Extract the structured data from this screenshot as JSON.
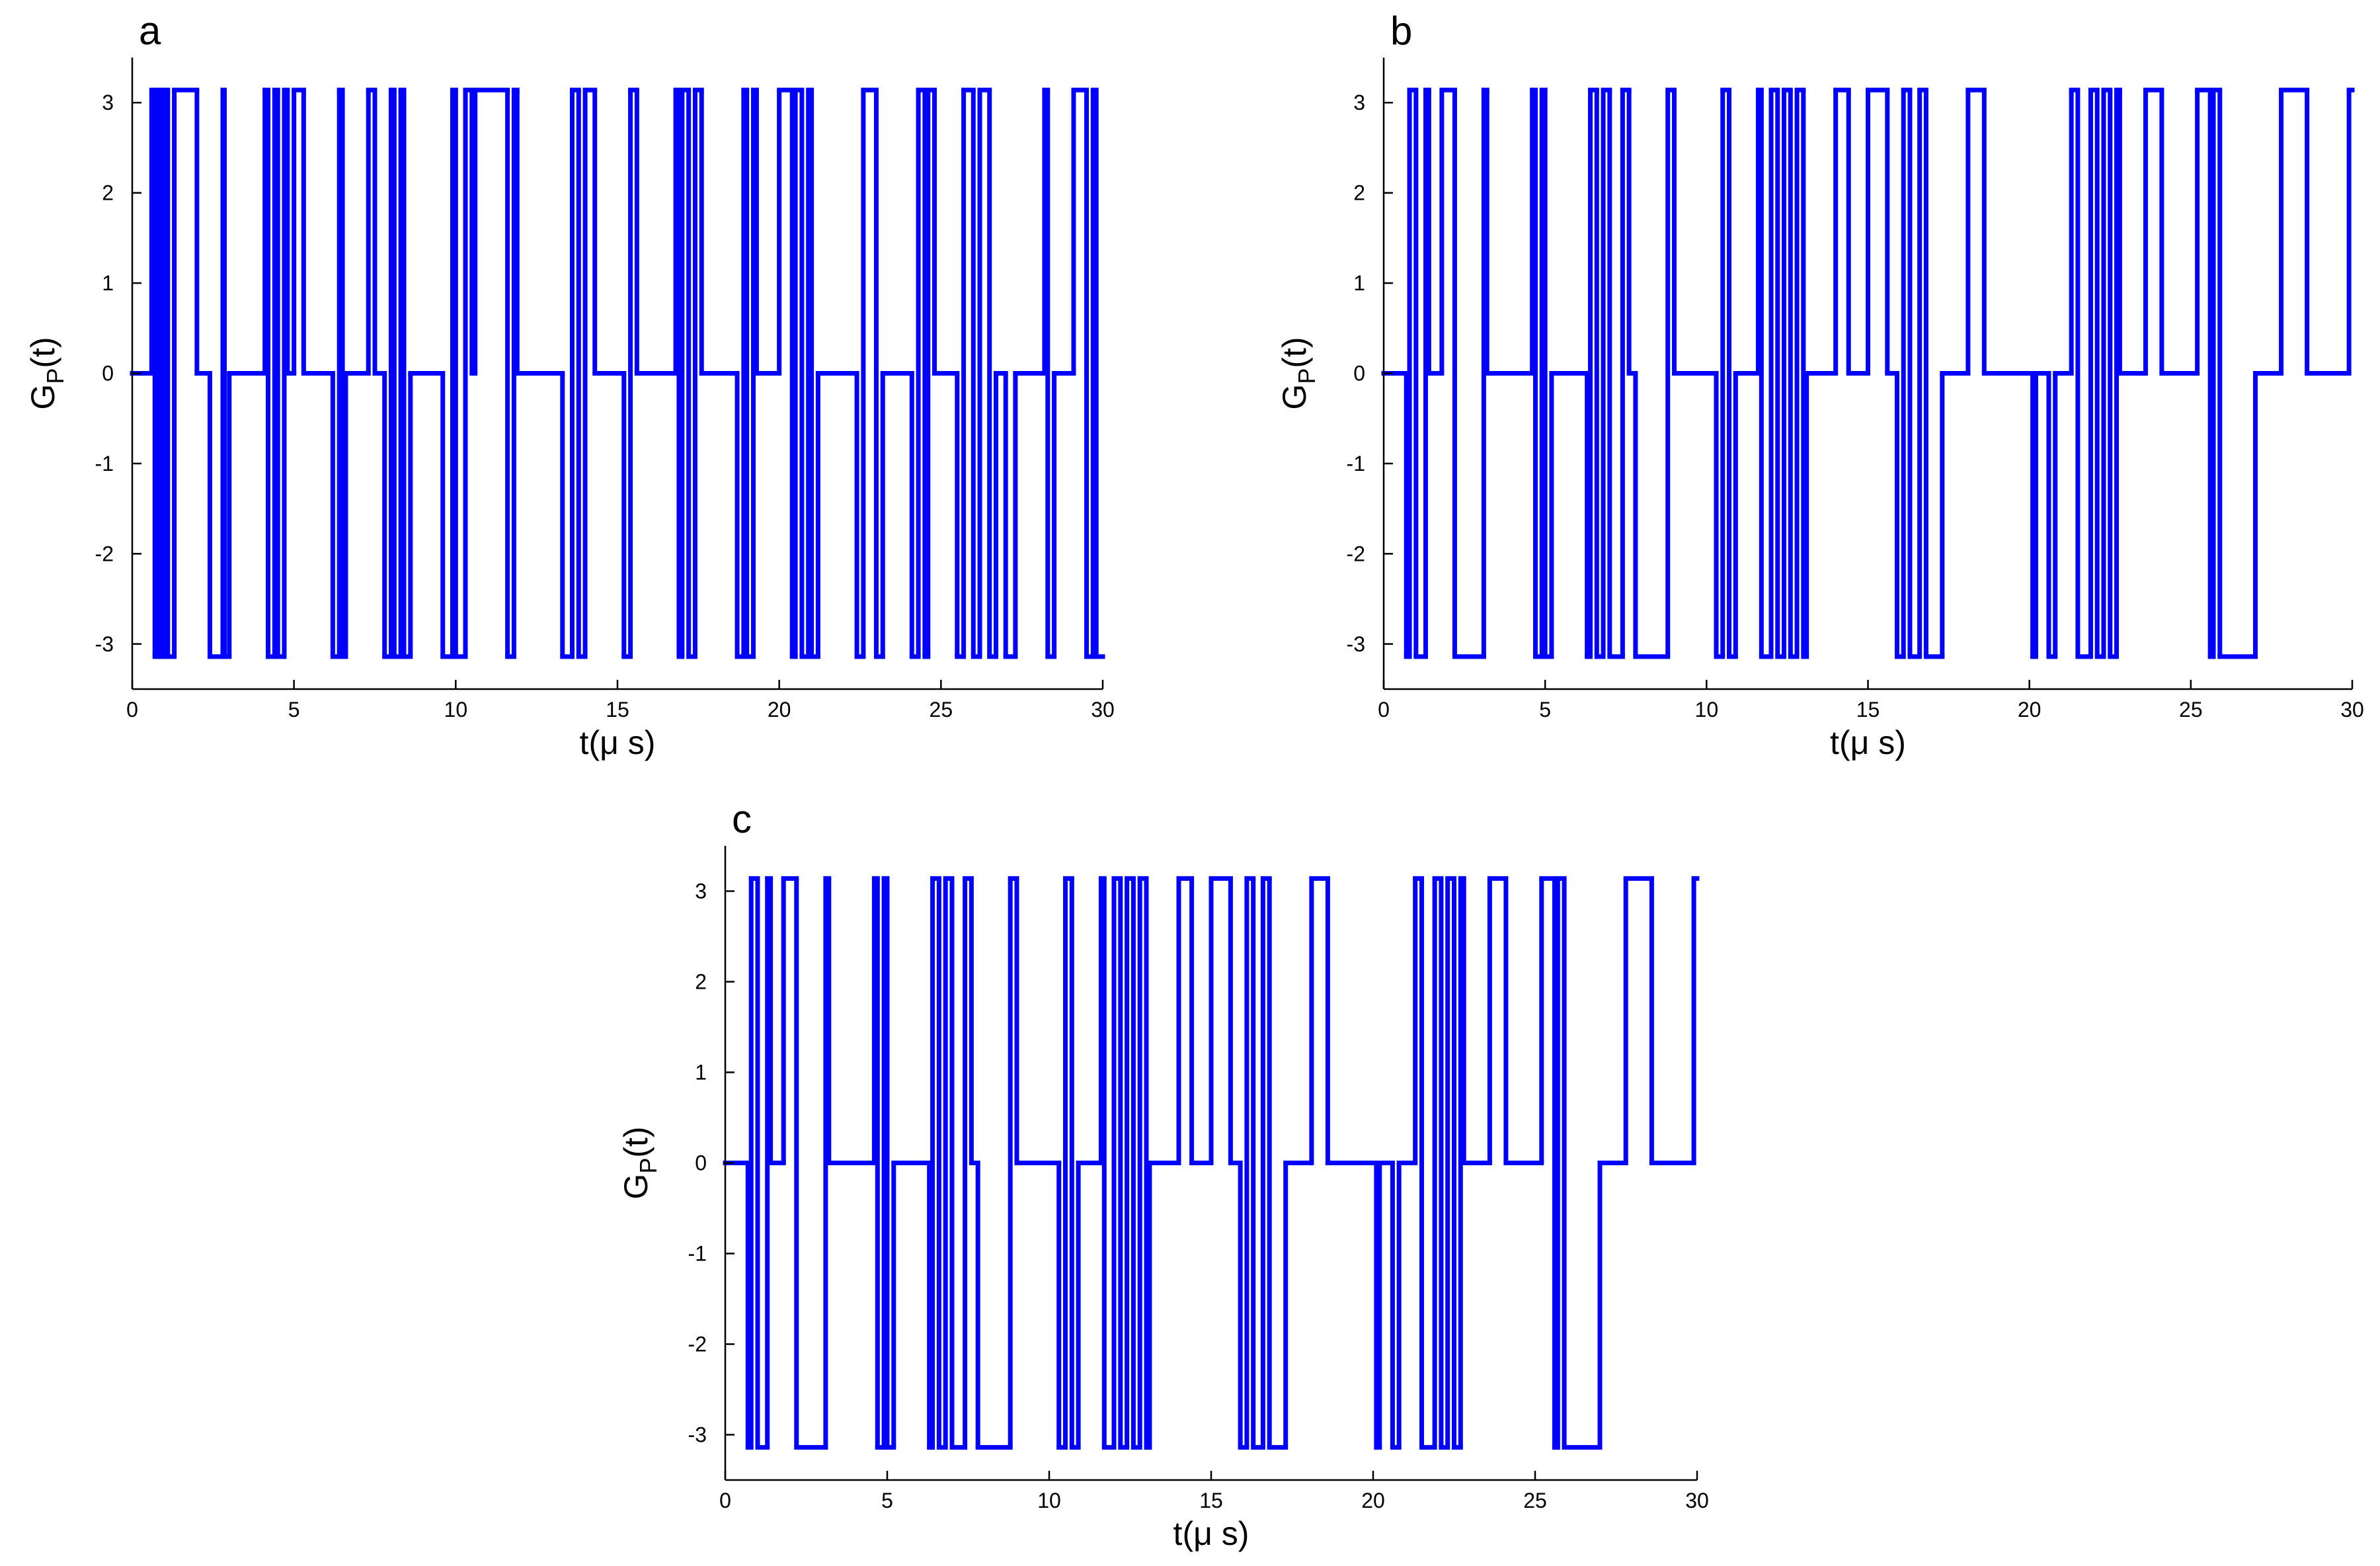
{
  "chart_data": [
    {
      "type": "step",
      "panel_label": "a",
      "xlabel": "t(μ s)",
      "ylabel": {
        "base": "G",
        "sub": "P",
        "tail": "(t)"
      },
      "xlim": [
        0,
        30
      ],
      "ylim": [
        -3.5,
        3.5
      ],
      "xticks": [
        0,
        5,
        10,
        15,
        20,
        25,
        30
      ],
      "yticks": [
        -3,
        -2,
        -1,
        0,
        1,
        2,
        3
      ],
      "color": "#0000ff",
      "x": [
        0,
        0.6,
        0.7,
        0.8,
        0.9,
        1.0,
        1.1,
        1.3,
        2.0,
        2.4,
        2.8,
        2.85,
        3.0,
        4.1,
        4.2,
        4.4,
        4.5,
        4.7,
        4.8,
        5.0,
        5.3,
        6.2,
        6.4,
        6.5,
        6.6,
        7.3,
        7.5,
        7.8,
        8.0,
        8.1,
        8.3,
        8.4,
        8.6,
        9.6,
        9.9,
        10.0,
        10.3,
        10.5,
        10.6,
        11.6,
        11.8,
        11.9,
        13.3,
        13.6,
        13.8,
        14.0,
        14.3,
        15.2,
        15.4,
        15.6,
        16.8,
        16.9,
        17.0,
        17.2,
        17.4,
        17.6,
        18.7,
        18.9,
        19.0,
        19.2,
        19.3,
        20.0,
        20.4,
        20.5,
        20.7,
        20.9,
        21.0,
        21.2,
        22.4,
        22.6,
        23.0,
        23.2,
        24.1,
        24.3,
        24.5,
        24.6,
        24.8,
        25.5,
        25.7,
        26.0,
        26.2,
        26.5,
        26.7,
        27.0,
        27.3,
        28.2,
        28.3,
        28.5,
        29.1,
        29.5,
        29.7,
        29.8
      ],
      "values": [
        0,
        3.14,
        -3.14,
        3.14,
        -3.14,
        3.14,
        -3.14,
        3.14,
        0,
        -3.14,
        3.14,
        -3.14,
        0,
        3.14,
        -3.14,
        3.14,
        -3.14,
        3.14,
        0,
        3.14,
        0,
        -3.14,
        3.14,
        -3.14,
        0,
        3.14,
        0,
        -3.14,
        3.14,
        -3.14,
        3.14,
        -3.14,
        0,
        -3.14,
        3.14,
        -3.14,
        3.14,
        0,
        3.14,
        -3.14,
        3.14,
        0,
        -3.14,
        3.14,
        -3.14,
        3.14,
        0,
        -3.14,
        3.14,
        0,
        3.14,
        -3.14,
        3.14,
        -3.14,
        3.14,
        0,
        -3.14,
        3.14,
        -3.14,
        3.14,
        0,
        3.14,
        -3.14,
        3.14,
        -3.14,
        3.14,
        -3.14,
        0,
        -3.14,
        3.14,
        -3.14,
        0,
        -3.14,
        3.14,
        -3.14,
        3.14,
        0,
        -3.14,
        3.14,
        -3.14,
        3.14,
        -3.14,
        0,
        -3.14,
        0,
        3.14,
        -3.14,
        0,
        3.14,
        -3.14,
        3.14,
        -3.14
      ]
    },
    {
      "type": "step",
      "panel_label": "b",
      "xlabel": "t(μ s)",
      "ylabel": {
        "base": "G",
        "sub": "P",
        "tail": "(t)"
      },
      "xlim": [
        0,
        30
      ],
      "ylim": [
        -3.5,
        3.5
      ],
      "xticks": [
        0,
        5,
        10,
        15,
        20,
        25,
        30
      ],
      "yticks": [
        -3,
        -2,
        -1,
        0,
        1,
        2,
        3
      ],
      "color": "#0000ff",
      "x": [
        0,
        0.7,
        0.8,
        1.0,
        1.3,
        1.4,
        1.8,
        2.2,
        3.1,
        3.2,
        4.6,
        4.7,
        4.9,
        5.0,
        5.2,
        6.3,
        6.4,
        6.6,
        6.8,
        7.0,
        7.4,
        7.6,
        7.8,
        8.8,
        9.0,
        10.3,
        10.5,
        10.7,
        10.9,
        11.6,
        11.7,
        12.0,
        12.2,
        12.4,
        12.6,
        12.8,
        13.0,
        13.1,
        14.0,
        14.4,
        15.0,
        15.6,
        15.9,
        16.1,
        16.3,
        16.6,
        16.8,
        17.3,
        18.1,
        18.6,
        20.1,
        20.2,
        20.6,
        20.8,
        21.3,
        21.5,
        21.9,
        22.1,
        22.3,
        22.5,
        22.7,
        22.8,
        23.6,
        24.1,
        25.2,
        25.6,
        25.7,
        25.9,
        27.0,
        27.8,
        28.6,
        29.9
      ],
      "values": [
        0,
        -3.14,
        3.14,
        -3.14,
        3.14,
        0,
        3.14,
        -3.14,
        3.14,
        0,
        3.14,
        -3.14,
        3.14,
        -3.14,
        0,
        -3.14,
        3.14,
        -3.14,
        3.14,
        -3.14,
        3.14,
        0,
        -3.14,
        3.14,
        0,
        -3.14,
        3.14,
        -3.14,
        0,
        3.14,
        -3.14,
        3.14,
        -3.14,
        3.14,
        -3.14,
        3.14,
        -3.14,
        0,
        3.14,
        0,
        3.14,
        0,
        -3.14,
        3.14,
        -3.14,
        3.14,
        -3.14,
        0,
        3.14,
        0,
        -3.14,
        0,
        -3.14,
        0,
        3.14,
        -3.14,
        3.14,
        -3.14,
        3.14,
        -3.14,
        3.14,
        0,
        3.14,
        0,
        3.14,
        -3.14,
        3.14,
        -3.14,
        0,
        3.14,
        0,
        3.14
      ]
    },
    {
      "type": "step",
      "panel_label": "c",
      "xlabel": "t(μ s)",
      "ylabel": {
        "base": "G",
        "sub": "P",
        "tail": "(t)"
      },
      "xlim": [
        0,
        30
      ],
      "ylim": [
        -3.5,
        3.5
      ],
      "xticks": [
        0,
        5,
        10,
        15,
        20,
        25,
        30
      ],
      "yticks": [
        -3,
        -2,
        -1,
        0,
        1,
        2,
        3
      ],
      "color": "#0000ff",
      "x": [
        0,
        0.7,
        0.8,
        1.0,
        1.3,
        1.4,
        1.8,
        2.2,
        3.1,
        3.2,
        4.6,
        4.7,
        4.9,
        5.0,
        5.2,
        6.3,
        6.4,
        6.6,
        6.8,
        7.0,
        7.4,
        7.6,
        7.8,
        8.8,
        9.0,
        10.3,
        10.5,
        10.7,
        10.9,
        11.6,
        11.7,
        12.0,
        12.2,
        12.4,
        12.6,
        12.8,
        13.0,
        13.1,
        14.0,
        14.4,
        15.0,
        15.6,
        15.9,
        16.1,
        16.3,
        16.6,
        16.8,
        17.3,
        18.1,
        18.6,
        20.1,
        20.2,
        20.6,
        20.8,
        21.3,
        21.5,
        21.9,
        22.1,
        22.3,
        22.5,
        22.7,
        22.8,
        23.6,
        24.1,
        25.2,
        25.6,
        25.7,
        25.9,
        27.0,
        27.8,
        28.6,
        29.9
      ],
      "values": [
        0,
        -3.14,
        3.14,
        -3.14,
        3.14,
        0,
        3.14,
        -3.14,
        3.14,
        0,
        3.14,
        -3.14,
        3.14,
        -3.14,
        0,
        -3.14,
        3.14,
        -3.14,
        3.14,
        -3.14,
        3.14,
        0,
        -3.14,
        3.14,
        0,
        -3.14,
        3.14,
        -3.14,
        0,
        3.14,
        -3.14,
        3.14,
        -3.14,
        3.14,
        -3.14,
        3.14,
        -3.14,
        0,
        3.14,
        0,
        3.14,
        0,
        -3.14,
        3.14,
        -3.14,
        3.14,
        -3.14,
        0,
        3.14,
        0,
        -3.14,
        0,
        -3.14,
        0,
        3.14,
        -3.14,
        3.14,
        -3.14,
        3.14,
        -3.14,
        3.14,
        0,
        3.14,
        0,
        3.14,
        -3.14,
        3.14,
        -3.14,
        0,
        3.14,
        0,
        3.14
      ]
    }
  ]
}
